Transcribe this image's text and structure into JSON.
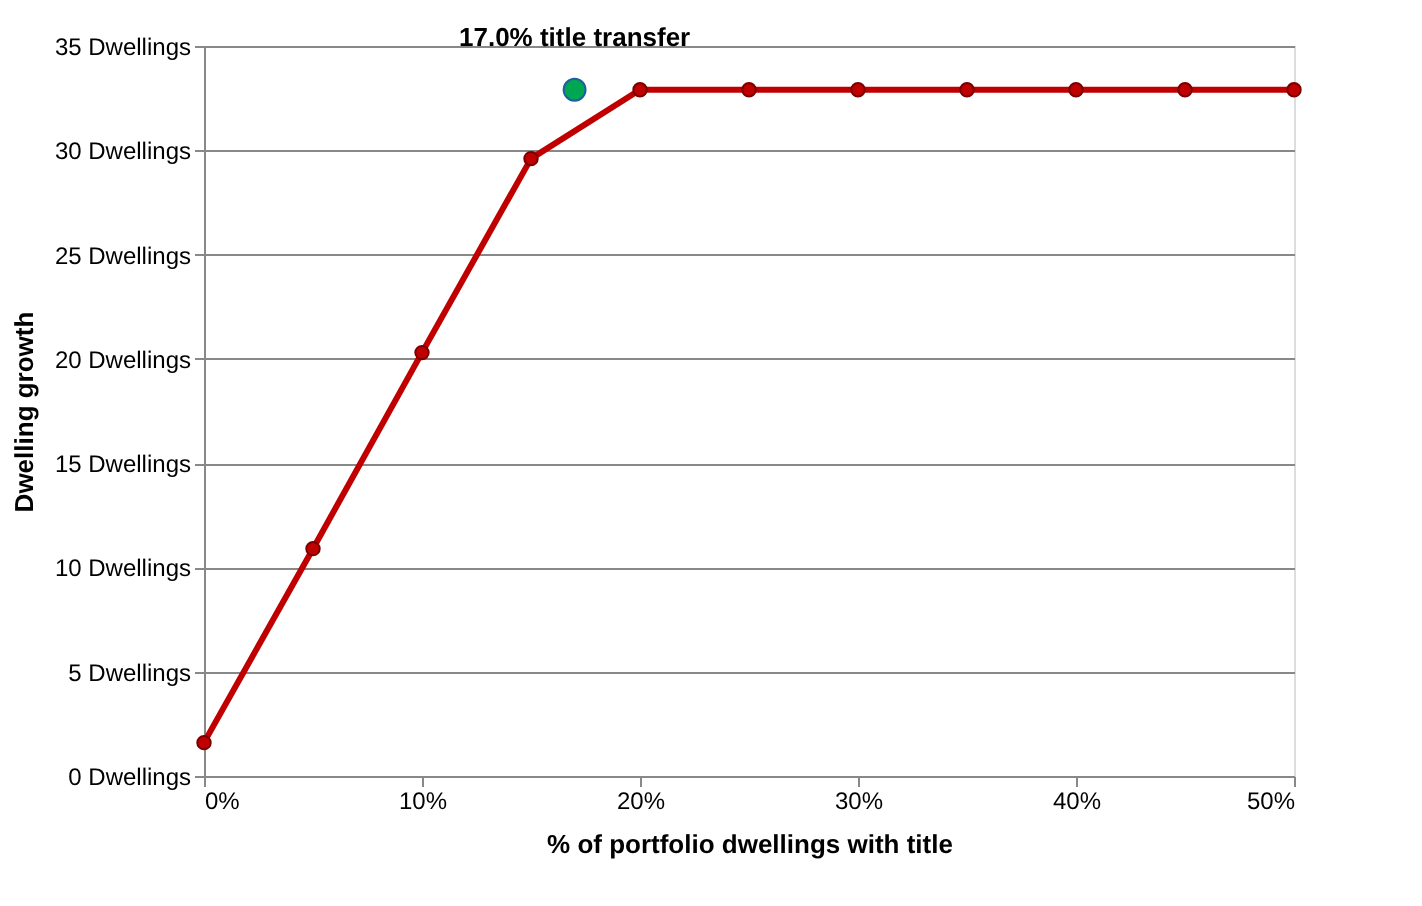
{
  "chart_data": {
    "type": "line",
    "xlabel": "% of portfolio dwellings with title",
    "ylabel": "Dwelling growth",
    "x": [
      0,
      5,
      10,
      15,
      20,
      25,
      30,
      35,
      40,
      45,
      50
    ],
    "series": [
      {
        "color": "#c00000",
        "values": [
          1.6,
          10.9,
          20.3,
          29.6,
          32.9,
          32.9,
          32.9,
          32.9,
          32.9,
          32.9,
          32.9
        ]
      },
      {
        "type": "scatter",
        "color": "#00a651",
        "x": [
          17
        ],
        "values": [
          32.9
        ]
      }
    ],
    "annotations": [
      {
        "text": "17.0% title transfer",
        "x": 17,
        "y": 32.9
      }
    ],
    "xlim": [
      0,
      50
    ],
    "ylim": [
      0,
      35
    ],
    "xticks": [
      {
        "value": 0,
        "label": "0%"
      },
      {
        "value": 10,
        "label": "10%"
      },
      {
        "value": 20,
        "label": "20%"
      },
      {
        "value": 30,
        "label": "30%"
      },
      {
        "value": 40,
        "label": "40%"
      },
      {
        "value": 50,
        "label": "50%"
      }
    ],
    "yticks": [
      {
        "value": 0,
        "label": "0 Dwellings"
      },
      {
        "value": 5,
        "label": "5 Dwellings"
      },
      {
        "value": 10,
        "label": "10 Dwellings"
      },
      {
        "value": 15,
        "label": "15 Dwellings"
      },
      {
        "value": 20,
        "label": "20 Dwellings"
      },
      {
        "value": 25,
        "label": "25 Dwellings"
      },
      {
        "value": 30,
        "label": "30 Dwellings"
      },
      {
        "value": 35,
        "label": "35 Dwellings"
      }
    ],
    "grid": "y",
    "marker": "circle",
    "line_style": "solid"
  }
}
